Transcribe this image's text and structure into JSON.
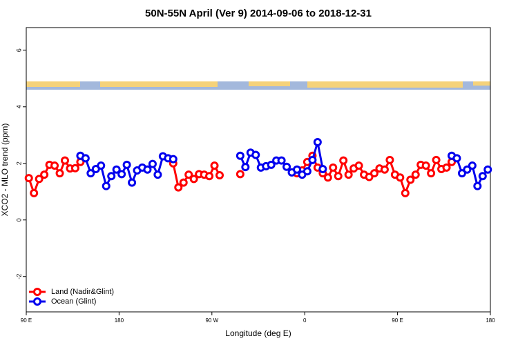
{
  "chart_data": {
    "type": "line",
    "title": "50N-55N April (Ver 9)   2014-09-06 to 2018-12-31",
    "xlabel": "Longitude (deg E)",
    "ylabel": "XCO2 - MLO trend (ppm)",
    "xlim": [
      90,
      540
    ],
    "ylim": [
      -3.25,
      6.8
    ],
    "xticks": [
      {
        "value": 90,
        "label": "90 E"
      },
      180,
      {
        "value": 270,
        "label": "90 W"
      },
      {
        "value": 360,
        "label": "0"
      },
      {
        "value": 450,
        "label": "90 E"
      },
      {
        "value": 540,
        "label": "180"
      }
    ],
    "yticks": [
      -2,
      0,
      2,
      4,
      6
    ],
    "legend": "bottom-left",
    "x": [
      92.5,
      97.5,
      102.5,
      107.5,
      112.5,
      117.5,
      122.5,
      127.5,
      132.5,
      137.5,
      142.5,
      147.5,
      152.5,
      157.5,
      162.5,
      167.5,
      172.5,
      177.5,
      182.5,
      187.5,
      192.5,
      197.5,
      202.5,
      207.5,
      212.5,
      217.5,
      222.5,
      227.5,
      232.5,
      237.5,
      242.5,
      247.5,
      252.5,
      257.5,
      262.5,
      267.5,
      272.5,
      277.5,
      282.5,
      287.5,
      292.5,
      297.5,
      302.5,
      307.5,
      312.5,
      317.5,
      322.5,
      327.5,
      332.5,
      337.5,
      342.5,
      347.5,
      352.5,
      357.5,
      362.5,
      367.5,
      372.5,
      377.5,
      382.5,
      387.5,
      392.5,
      397.5,
      402.5,
      407.5,
      412.5,
      417.5,
      422.5,
      427.5,
      432.5,
      437.5,
      442.5,
      447.5,
      452.5,
      457.5,
      462.5,
      467.5,
      472.5,
      477.5,
      482.5,
      487.5,
      492.5,
      497.5,
      502.5,
      507.5,
      512.5,
      517.5,
      522.5,
      527.5,
      532.5,
      537.5
    ],
    "series": [
      {
        "name": "Land (Nadir&Glint)",
        "color": "#ff0000",
        "values": [
          1.48,
          0.95,
          1.45,
          1.6,
          1.95,
          1.92,
          1.65,
          2.1,
          1.82,
          1.83,
          2.05,
          null,
          null,
          null,
          null,
          null,
          null,
          null,
          null,
          null,
          null,
          null,
          null,
          null,
          null,
          null,
          null,
          null,
          2.0,
          1.15,
          1.32,
          1.6,
          1.45,
          1.62,
          1.6,
          1.55,
          1.92,
          1.58,
          null,
          null,
          null,
          1.62,
          null,
          null,
          null,
          null,
          null,
          null,
          null,
          null,
          null,
          null,
          1.65,
          1.75,
          2.05,
          2.27,
          1.85,
          1.65,
          1.5,
          1.85,
          1.55,
          2.1,
          1.6,
          1.82,
          1.92,
          1.6,
          1.52,
          1.65,
          1.82,
          1.78,
          2.12,
          1.6,
          1.5,
          0.95,
          1.42,
          1.6,
          1.95,
          1.92,
          1.65,
          2.12,
          1.8,
          1.85,
          2.05,
          null,
          null,
          null,
          null,
          null,
          null,
          null
        ]
      },
      {
        "name": "Ocean (Glint)",
        "color": "#0000ee",
        "values": [
          null,
          null,
          null,
          null,
          null,
          null,
          null,
          null,
          null,
          null,
          2.27,
          2.18,
          1.65,
          1.8,
          1.92,
          1.2,
          1.55,
          1.78,
          1.62,
          1.95,
          1.32,
          1.75,
          1.85,
          1.78,
          1.98,
          1.6,
          2.25,
          2.18,
          2.15,
          null,
          null,
          null,
          null,
          null,
          null,
          null,
          null,
          null,
          null,
          null,
          null,
          2.27,
          1.87,
          2.38,
          2.3,
          1.85,
          1.9,
          1.95,
          2.1,
          2.1,
          1.88,
          1.68,
          1.78,
          1.6,
          1.72,
          2.12,
          2.75,
          1.8,
          null,
          null,
          null,
          null,
          null,
          null,
          null,
          null,
          null,
          null,
          null,
          null,
          null,
          null,
          null,
          null,
          null,
          null,
          null,
          null,
          null,
          null,
          null,
          null,
          2.27,
          2.18,
          1.65,
          1.78,
          1.92,
          1.2,
          1.55,
          1.78
        ]
      }
    ]
  }
}
